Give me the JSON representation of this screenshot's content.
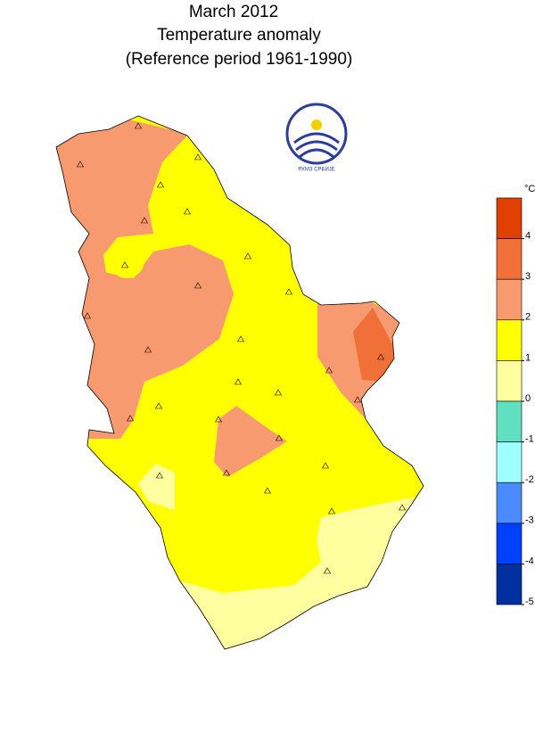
{
  "title": [
    "March 2012",
    "Temperature anomaly",
    "(Reference period 1961-1990)"
  ],
  "logo_text": "РХМЗ СРБИЈЕ",
  "legend": {
    "unit": "°C",
    "ticks": [
      4,
      3,
      2,
      1,
      0,
      -1,
      -2,
      -3,
      -4,
      -5
    ],
    "colors": [
      "#e04000",
      "#f07038",
      "#f89a70",
      "#ffff00",
      "#ffffa0",
      "#60e0c0",
      "#a0ffff",
      "#4a8cff",
      "#0040ff",
      "#0030a0"
    ]
  }
}
